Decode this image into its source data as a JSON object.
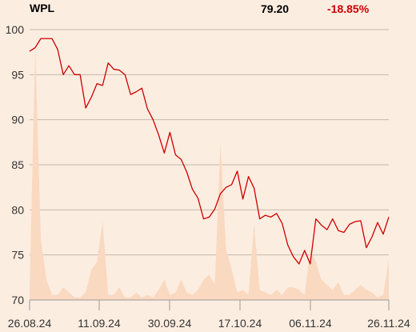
{
  "header": {
    "ticker": "WPL",
    "price": "79.20",
    "change": "-18.85%"
  },
  "colors": {
    "background": "#fcede1",
    "price_line": "#cc0000",
    "volume_area": "#f9d9c0",
    "change_negative": "#cc0000",
    "gridline": "#c8b8aa"
  },
  "chart_data": {
    "type": "line",
    "title": "",
    "xlabel": "",
    "ylabel": "",
    "ylim": [
      70,
      100
    ],
    "yticks": [
      70,
      75,
      80,
      85,
      90,
      95,
      100
    ],
    "xtick_labels": [
      "26.08.24",
      "11.09.24",
      "30.09.24",
      "17.10.24",
      "06.11.24",
      "26.11.24"
    ],
    "grid": true,
    "x_range": [
      "2024-08-26",
      "2024-11-26"
    ],
    "series": [
      {
        "kind": "line",
        "values": [
          97.6,
          98.0,
          99.0,
          99.0,
          99.0,
          97.8,
          95.0,
          96.0,
          95.0,
          95.0,
          91.3,
          92.5,
          94.0,
          93.8,
          96.3,
          95.6,
          95.5,
          95.0,
          92.8,
          93.1,
          93.5,
          91.2,
          90.0,
          88.3,
          86.3,
          88.6,
          86.1,
          85.6,
          84.2,
          82.3,
          81.3,
          79.0,
          79.2,
          80.1,
          81.8,
          82.5,
          82.8,
          84.3,
          81.2,
          83.7,
          82.4,
          79.0,
          79.4,
          79.2,
          79.6,
          78.5,
          76.1,
          74.8,
          74.0,
          75.5,
          74.0,
          79.0,
          78.3,
          77.8,
          79.0,
          77.7,
          77.5,
          78.4,
          78.7,
          78.8,
          75.8,
          77.0,
          78.6,
          77.3,
          79.2
        ]
      },
      {
        "kind": "volume",
        "values": [
          0.4,
          10.0,
          2.4,
          0.8,
          0.2,
          0.2,
          0.5,
          0.3,
          0.1,
          0.1,
          0.3,
          1.2,
          1.5,
          3.1,
          0.2,
          0.2,
          0.5,
          0.1,
          0.1,
          0.3,
          0.1,
          0.2,
          0.1,
          0.4,
          0.8,
          0.2,
          0.3,
          0.8,
          0.3,
          0.2,
          0.4,
          0.8,
          1.0,
          0.6,
          6.2,
          2.0,
          1.2,
          0.3,
          0.4,
          0.2,
          3.0,
          0.4,
          0.3,
          0.2,
          0.4,
          0.2,
          0.5,
          0.5,
          0.4,
          0.2,
          2.0,
          1.5,
          0.8,
          0.6,
          0.4,
          0.7,
          0.2,
          0.2,
          0.4,
          0.6,
          0.4,
          0.3,
          0.1,
          0.2,
          1.6
        ]
      }
    ]
  }
}
